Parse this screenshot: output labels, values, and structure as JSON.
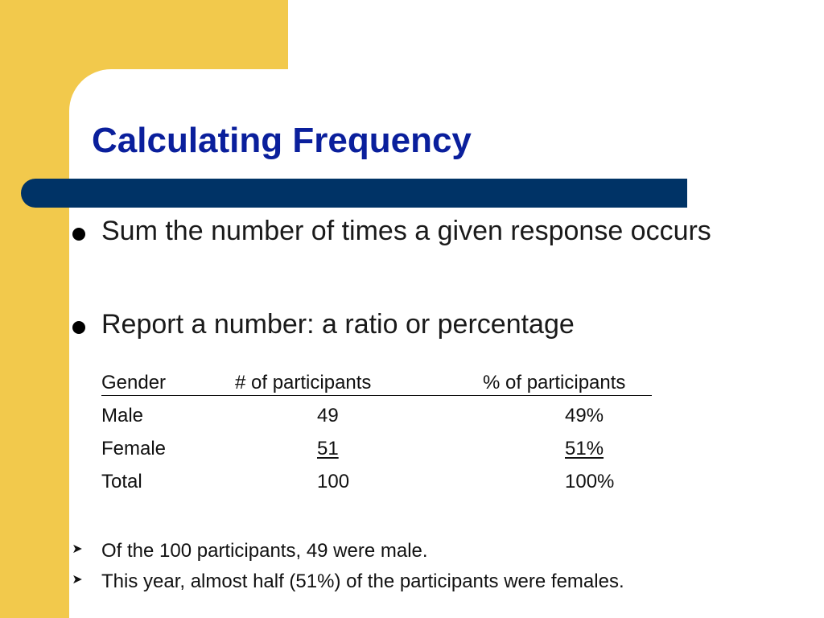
{
  "colors": {
    "yellow": "#F2C94C",
    "navy": "#0A1F9C",
    "bar": "#003366"
  },
  "slide": {
    "title": "Calculating Frequency",
    "bullets": [
      "Sum the number of times a given response occurs",
      "Report a number: a ratio or percentage"
    ],
    "table": {
      "headers": [
        "Gender",
        "# of participants",
        "% of participants"
      ],
      "rows": [
        [
          "Male",
          "49",
          "49%"
        ],
        [
          "Female",
          "51",
          "51%"
        ],
        [
          "Total",
          "100",
          "100%"
        ]
      ]
    },
    "sub_bullets": [
      "Of the 100 participants, 49 were male.",
      "This year, almost half (51%) of the participants were females."
    ]
  }
}
